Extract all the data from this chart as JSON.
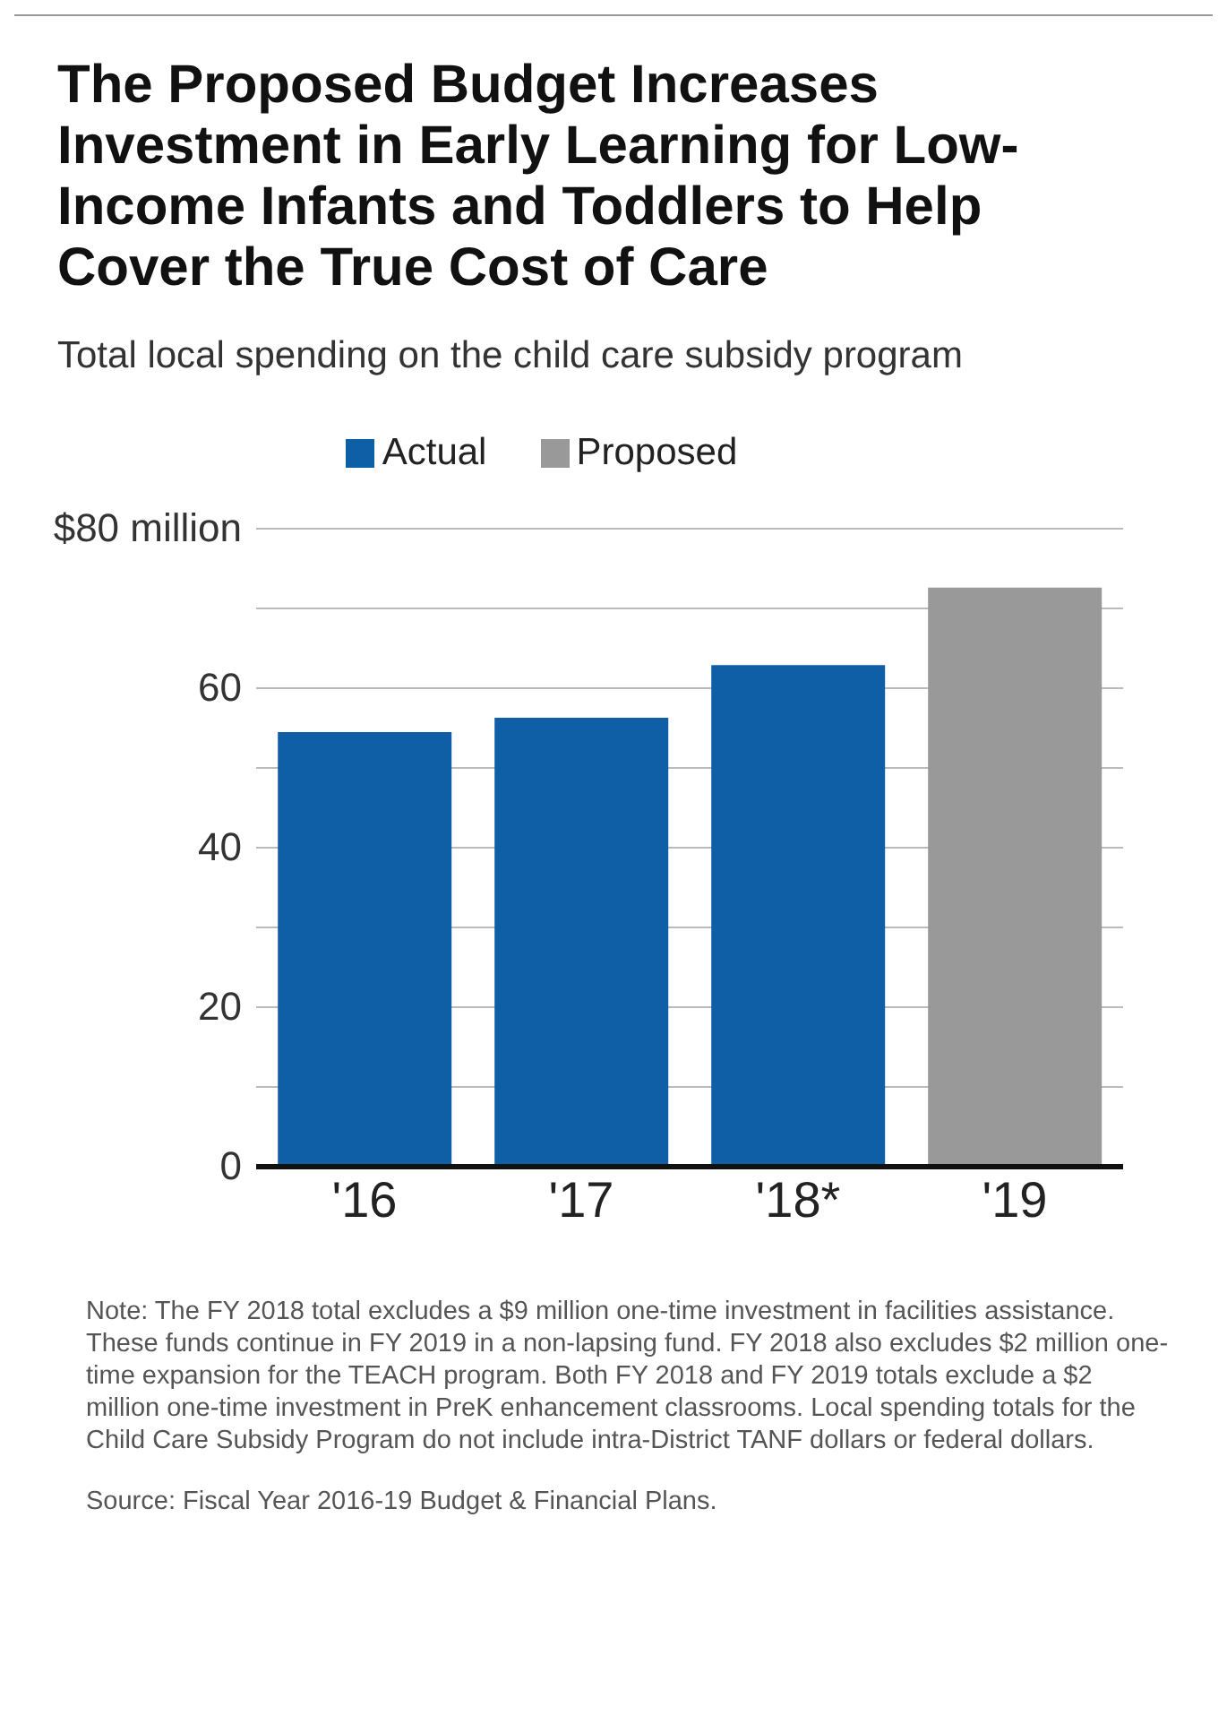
{
  "chart_data": {
    "type": "bar",
    "title": "The Proposed Budget Increases Investment in Early Learning for Low-Income Infants and Toddlers to Help Cover the True Cost of Care",
    "subtitle": "Total local spending on the child care subsidy program",
    "categories": [
      "'16",
      "'17",
      "'18*",
      "'19"
    ],
    "series": [
      {
        "name": "Actual",
        "color": "#0e5fa6",
        "values": [
          54.5,
          56.3,
          62.9,
          null
        ]
      },
      {
        "name": "Proposed",
        "color": "#999999",
        "values": [
          null,
          null,
          null,
          72.6
        ]
      }
    ],
    "ylim": [
      0,
      80
    ],
    "yticks": [
      0,
      {
        "value": 10,
        "label": null
      },
      20,
      {
        "value": 30,
        "label": null
      },
      40,
      {
        "value": 50,
        "label": null
      },
      60,
      {
        "value": 70,
        "label": null
      },
      {
        "value": 80,
        "label": "$80 million"
      }
    ],
    "grid": "y",
    "legend": "top",
    "annotations": [
      "Note: The FY 2018 total excludes a $9 million one-time investment in facilities assistance. These funds continue in FY 2019 in a non-lapsing fund. FY 2018 also excludes $2 million one-time expansion for the TEACH program. Both FY 2018 and FY 2019 totals exclude a $2 million one-time investment in PreK enhancement classrooms. Local spending totals for the Child Care Subsidy Program do not include intra-District TANF dollars or federal dollars.",
      "Source: Fiscal Year 2016-19 Budget & Financial Plans."
    ]
  }
}
